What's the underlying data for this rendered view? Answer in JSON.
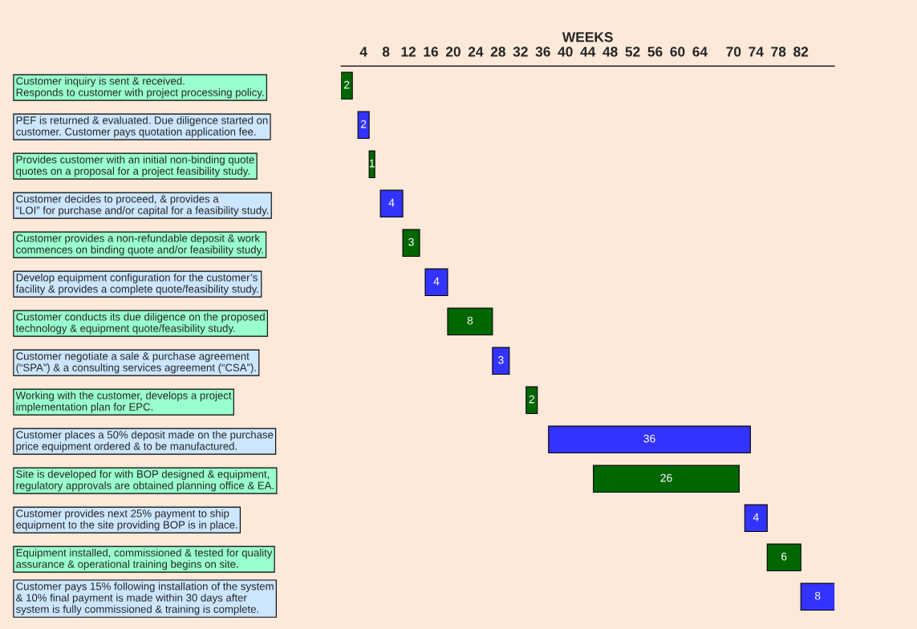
{
  "chart_data": {
    "type": "bar",
    "orientation": "horizontal",
    "xlabel": "WEEKS",
    "categories": [
      "Customer inquiry is sent & received.\nResponds to customer with project processing policy.",
      "PEF is returned & evaluated. Due diligence started on\ncustomer. Customer pays quotation application fee.",
      "Provides customer with an initial non-binding quote\nquotes on a proposal for a project feasibility study.",
      "Customer decides to proceed, & provides a\n“LOI” for purchase and/or capital for a feasibility study.",
      "Customer provides a non-refundable deposit & work\ncommences on binding quote and/or feasibility study.",
      "Develop equipment configuration for the customer’s\nfacility & provides a complete quote/feasibility study.",
      "Customer conducts its due diligence on the proposed\ntechnology & equipment quote/feasibility study.",
      "Customer negotiate a sale & purchase agreement\n(“SPA”) & a consulting services agreement (“CSA”).",
      "Working with the customer, develops a project\nimplementation plan for EPC.",
      "Customer places a 50% deposit made on the purchase\nprice equipment ordered & to be manufactured.",
      "Site is developed for with BOP designed & equipment,\nregulatory approvals are obtained planning office & EA.",
      "Customer provides next 25% payment to ship\nequipment to the site providing BOP is in place.",
      "Equipment installed, commissioned & tested for quality\nassurance & operational training begins on site.",
      "Customer pays 15% following installation of the system\n& 10% final payment is made within 30 days after\nsystem is fully commissioned & training is complete."
    ],
    "values": [
      2,
      2,
      1,
      4,
      3,
      4,
      8,
      3,
      2,
      36,
      26,
      4,
      6,
      8
    ],
    "base": [
      0,
      3,
      5,
      7,
      11,
      15,
      19,
      27,
      33,
      37,
      45,
      72,
      76,
      82
    ],
    "colors": [
      "#006600",
      "#3333ff",
      "#006600",
      "#3333ff",
      "#006600",
      "#3333ff",
      "#006600",
      "#3333ff",
      "#006600",
      "#3333ff",
      "#006600",
      "#3333ff",
      "#006600",
      "#3333ff"
    ],
    "data_labels": true,
    "xlim": [
      0,
      88
    ],
    "xticks": [
      4,
      8,
      12,
      16,
      20,
      24,
      28,
      32,
      36,
      40,
      44,
      48,
      52,
      56,
      60,
      64,
      70,
      74,
      78,
      82
    ],
    "grid": false,
    "legend": false
  }
}
